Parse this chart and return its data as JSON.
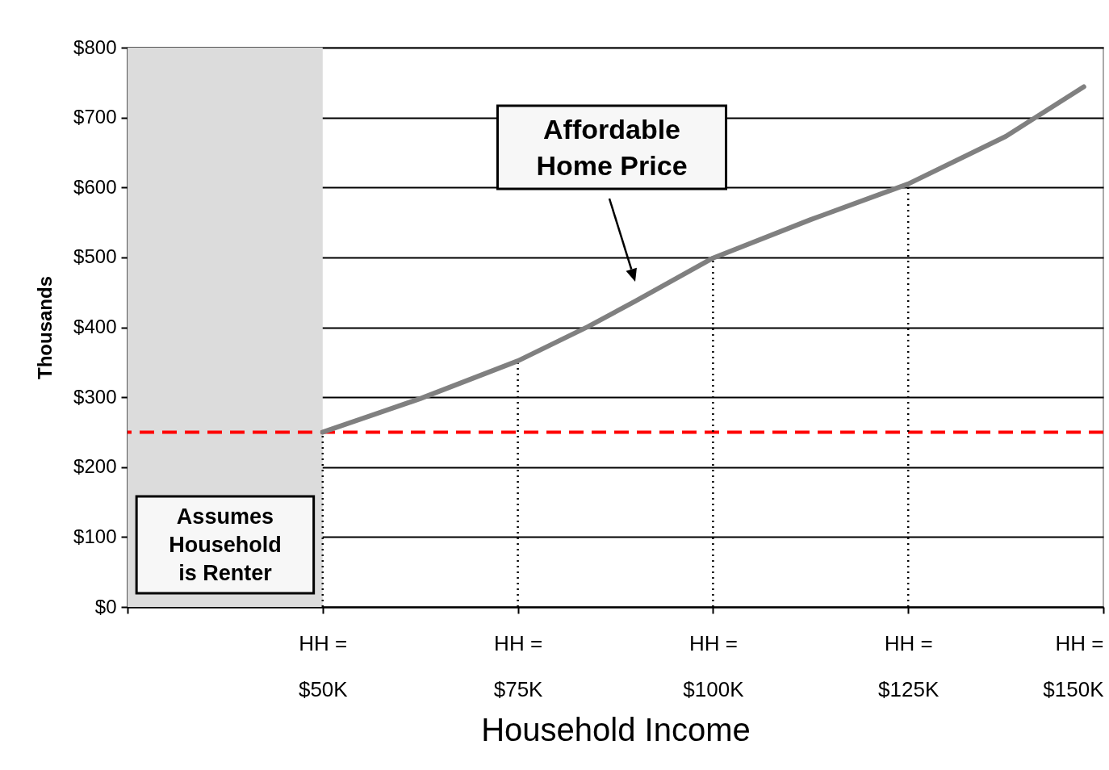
{
  "chart_data": {
    "type": "line",
    "xlabel": "Household Income",
    "ylabel": "Thousands",
    "xlim": [
      25,
      150
    ],
    "ylim": [
      0,
      800
    ],
    "xticks": [
      {
        "value": 25,
        "label": null
      },
      {
        "value": 50,
        "label": "HH =\n$50K"
      },
      {
        "value": 75,
        "label": "HH =\n$75K"
      },
      {
        "value": 100,
        "label": "HH =\n$100K"
      },
      {
        "value": 125,
        "label": "HH =\n$125K"
      },
      {
        "value": 150,
        "label": "HH =\n$150K"
      }
    ],
    "yticks": [
      {
        "value": 0,
        "label": "$0"
      },
      {
        "value": 100,
        "label": "$100"
      },
      {
        "value": 200,
        "label": "$200"
      },
      {
        "value": 300,
        "label": "$300"
      },
      {
        "value": 400,
        "label": "$400"
      },
      {
        "value": 500,
        "label": "$500"
      },
      {
        "value": 600,
        "label": "$600"
      },
      {
        "value": 700,
        "label": "$700"
      },
      {
        "value": 800,
        "label": "$800"
      }
    ],
    "grid": "y",
    "marker": "none",
    "line_style": "solid",
    "series": [
      {
        "color": "#808080",
        "x": [
          50,
          62.5,
          75,
          84,
          90,
          100,
          112.5,
          125,
          137.5,
          147.5
        ],
        "values": [
          250,
          298,
          352,
          401,
          437,
          499,
          554,
          605,
          673,
          744
        ]
      }
    ],
    "ref_lines": [
      {
        "axis": "y",
        "value": 250,
        "color": "#ff0000",
        "line_style": "dashed"
      },
      {
        "axis": "x",
        "value": 50,
        "color": "#000000",
        "line_style": "dotted"
      },
      {
        "axis": "x",
        "value": 75,
        "color": "#000000",
        "line_style": "dotted"
      },
      {
        "axis": "x",
        "value": 100,
        "color": "#000000",
        "line_style": "dotted"
      },
      {
        "axis": "x",
        "value": 125,
        "color": "#000000",
        "line_style": "dotted"
      }
    ],
    "bands": [
      {
        "axis": "x",
        "from": 25,
        "to": 50,
        "label": "Assumes\nHousehold\nis Renter",
        "color": "#dcdcdc"
      }
    ],
    "annotations": [
      "Affordable\nHome Price"
    ]
  }
}
